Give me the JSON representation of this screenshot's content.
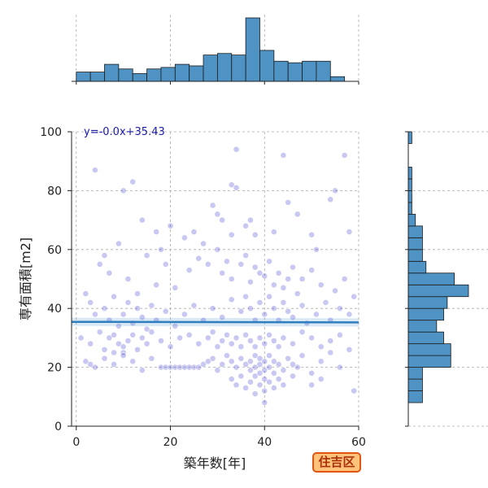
{
  "badge": {
    "label": "住吉区"
  },
  "chart_data": {
    "type": "scatter",
    "title": "",
    "xlabel": "築年数[年]",
    "ylabel": "専有面積[m2]",
    "xlim": [
      -1,
      60
    ],
    "ylim": [
      0,
      100
    ],
    "xticks": [
      0,
      20,
      40,
      60
    ],
    "yticks": [
      0,
      20,
      40,
      60,
      80,
      100
    ],
    "grid": true,
    "regression": {
      "label": "y=-0.0x+35.43",
      "slope": -0.003,
      "intercept": 35.43
    },
    "scatter_points": [
      [
        3,
        21
      ],
      [
        4,
        87
      ],
      [
        8,
        25
      ],
      [
        10,
        25
      ],
      [
        10,
        80
      ],
      [
        12,
        83
      ],
      [
        14,
        70
      ],
      [
        17,
        66
      ],
      [
        18,
        60
      ],
      [
        20,
        68
      ],
      [
        23,
        64
      ],
      [
        25,
        66
      ],
      [
        27,
        62
      ],
      [
        29,
        75
      ],
      [
        30,
        72
      ],
      [
        31,
        70
      ],
      [
        33,
        82
      ],
      [
        34,
        81
      ],
      [
        33,
        65
      ],
      [
        34,
        94
      ],
      [
        37,
        70
      ],
      [
        38,
        65
      ],
      [
        36,
        68
      ],
      [
        42,
        66
      ],
      [
        44,
        92
      ],
      [
        45,
        76
      ],
      [
        47,
        72
      ],
      [
        50,
        65
      ],
      [
        51,
        60
      ],
      [
        54,
        77
      ],
      [
        55,
        80
      ],
      [
        57,
        92
      ],
      [
        58,
        66
      ],
      [
        59,
        12
      ],
      [
        5,
        55
      ],
      [
        6,
        58
      ],
      [
        7,
        52
      ],
      [
        9,
        62
      ],
      [
        11,
        50
      ],
      [
        13,
        45
      ],
      [
        15,
        58
      ],
      [
        17,
        48
      ],
      [
        19,
        55
      ],
      [
        21,
        47
      ],
      [
        24,
        53
      ],
      [
        26,
        57
      ],
      [
        28,
        55
      ],
      [
        30,
        60
      ],
      [
        31,
        52
      ],
      [
        32,
        56
      ],
      [
        33,
        50
      ],
      [
        35,
        55
      ],
      [
        36,
        58
      ],
      [
        37,
        49
      ],
      [
        38,
        54
      ],
      [
        39,
        52
      ],
      [
        40,
        51
      ],
      [
        41,
        56
      ],
      [
        42,
        48
      ],
      [
        43,
        52
      ],
      [
        44,
        47
      ],
      [
        45,
        50
      ],
      [
        46,
        54
      ],
      [
        47,
        45
      ],
      [
        48,
        50
      ],
      [
        50,
        53
      ],
      [
        52,
        48
      ],
      [
        55,
        46
      ],
      [
        57,
        50
      ],
      [
        2,
        45
      ],
      [
        3,
        42
      ],
      [
        4,
        38
      ],
      [
        6,
        40
      ],
      [
        7,
        36
      ],
      [
        8,
        44
      ],
      [
        9,
        34
      ],
      [
        10,
        38
      ],
      [
        11,
        42
      ],
      [
        12,
        35
      ],
      [
        13,
        40
      ],
      [
        14,
        37
      ],
      [
        15,
        33
      ],
      [
        16,
        41
      ],
      [
        17,
        36
      ],
      [
        19,
        39
      ],
      [
        21,
        34
      ],
      [
        23,
        38
      ],
      [
        25,
        41
      ],
      [
        27,
        36
      ],
      [
        29,
        40
      ],
      [
        31,
        37
      ],
      [
        33,
        43
      ],
      [
        35,
        39
      ],
      [
        36,
        44
      ],
      [
        37,
        40
      ],
      [
        38,
        36
      ],
      [
        39,
        42
      ],
      [
        40,
        38
      ],
      [
        41,
        44
      ],
      [
        42,
        40
      ],
      [
        43,
        36
      ],
      [
        44,
        42
      ],
      [
        45,
        39
      ],
      [
        46,
        37
      ],
      [
        48,
        41
      ],
      [
        49,
        35
      ],
      [
        51,
        38
      ],
      [
        53,
        42
      ],
      [
        54,
        36
      ],
      [
        56,
        40
      ],
      [
        58,
        38
      ],
      [
        59,
        44
      ],
      [
        1,
        30
      ],
      [
        3,
        28
      ],
      [
        5,
        32
      ],
      [
        6,
        26
      ],
      [
        7,
        30
      ],
      [
        8,
        31
      ],
      [
        9,
        28
      ],
      [
        10,
        27
      ],
      [
        11,
        29
      ],
      [
        12,
        31
      ],
      [
        13,
        26
      ],
      [
        14,
        30
      ],
      [
        15,
        28
      ],
      [
        16,
        32
      ],
      [
        18,
        29
      ],
      [
        20,
        27
      ],
      [
        22,
        30
      ],
      [
        24,
        31
      ],
      [
        26,
        28
      ],
      [
        28,
        30
      ],
      [
        29,
        32
      ],
      [
        30,
        27
      ],
      [
        31,
        29
      ],
      [
        32,
        31
      ],
      [
        33,
        28
      ],
      [
        34,
        30
      ],
      [
        35,
        27
      ],
      [
        36,
        31
      ],
      [
        37,
        29
      ],
      [
        38,
        27
      ],
      [
        39,
        30
      ],
      [
        40,
        28
      ],
      [
        41,
        31
      ],
      [
        42,
        29
      ],
      [
        43,
        27
      ],
      [
        44,
        30
      ],
      [
        46,
        28
      ],
      [
        48,
        32
      ],
      [
        50,
        30
      ],
      [
        52,
        27
      ],
      [
        54,
        29
      ],
      [
        56,
        31
      ],
      [
        58,
        26
      ],
      [
        2,
        22
      ],
      [
        4,
        20
      ],
      [
        6,
        23
      ],
      [
        8,
        21
      ],
      [
        10,
        24
      ],
      [
        12,
        22
      ],
      [
        14,
        19
      ],
      [
        16,
        23
      ],
      [
        18,
        20
      ],
      [
        19,
        20
      ],
      [
        20,
        20
      ],
      [
        21,
        20
      ],
      [
        22,
        20
      ],
      [
        23,
        20
      ],
      [
        24,
        20
      ],
      [
        25,
        20
      ],
      [
        26,
        20
      ],
      [
        27,
        21
      ],
      [
        28,
        22
      ],
      [
        29,
        23
      ],
      [
        30,
        19
      ],
      [
        31,
        21
      ],
      [
        32,
        24
      ],
      [
        33,
        22
      ],
      [
        34,
        20
      ],
      [
        35,
        23
      ],
      [
        36,
        21
      ],
      [
        37,
        19
      ],
      [
        37,
        22
      ],
      [
        38,
        20
      ],
      [
        38,
        17
      ],
      [
        38,
        24
      ],
      [
        39,
        18
      ],
      [
        39,
        21
      ],
      [
        39,
        23
      ],
      [
        40,
        19
      ],
      [
        40,
        16
      ],
      [
        40,
        22
      ],
      [
        41,
        20
      ],
      [
        41,
        24
      ],
      [
        42,
        18
      ],
      [
        42,
        22
      ],
      [
        43,
        21
      ],
      [
        44,
        19
      ],
      [
        45,
        23
      ],
      [
        46,
        21
      ],
      [
        47,
        20
      ],
      [
        48,
        24
      ],
      [
        50,
        18
      ],
      [
        52,
        22
      ],
      [
        54,
        25
      ],
      [
        56,
        20
      ],
      [
        33,
        16
      ],
      [
        34,
        14
      ],
      [
        35,
        17
      ],
      [
        36,
        13
      ],
      [
        37,
        15
      ],
      [
        38,
        11
      ],
      [
        39,
        14
      ],
      [
        40,
        12
      ],
      [
        40,
        8
      ],
      [
        41,
        15
      ],
      [
        42,
        13
      ],
      [
        43,
        16
      ],
      [
        44,
        14
      ],
      [
        46,
        17
      ],
      [
        50,
        14
      ],
      [
        52,
        16
      ]
    ],
    "histogram_x": {
      "bin_edges": [
        0,
        3,
        6,
        9,
        12,
        15,
        18,
        21,
        24,
        27,
        30,
        33,
        36,
        39,
        42,
        45,
        48,
        51,
        54,
        57,
        60
      ],
      "counts": [
        6,
        6,
        11,
        8,
        5,
        8,
        9,
        11,
        10,
        17,
        18,
        17,
        41,
        20,
        13,
        12,
        13,
        13,
        3,
        0
      ]
    },
    "histogram_y": {
      "bin_edges": [
        8,
        12,
        16,
        20,
        24,
        28,
        32,
        36,
        40,
        44,
        48,
        52,
        56,
        60,
        64,
        68,
        72,
        76,
        80,
        84,
        88,
        92,
        96,
        100
      ],
      "counts": [
        4,
        4,
        4,
        12,
        12,
        10,
        8,
        10,
        11,
        17,
        13,
        5,
        4,
        4,
        4,
        2,
        1,
        1,
        1,
        1,
        0,
        0,
        1
      ]
    }
  }
}
